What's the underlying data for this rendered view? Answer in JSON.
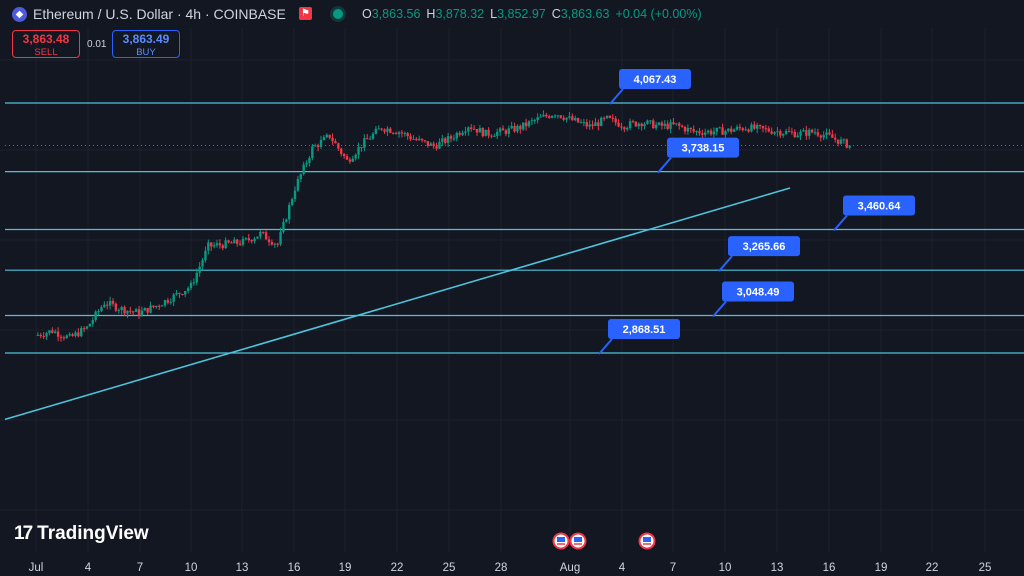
{
  "header": {
    "coin_icon": "ethereum-diamond-icon",
    "symbol": "Ethereum / U.S. Dollar · 4h · COINBASE",
    "flag_icon": "flag-icon",
    "ohlc": [
      {
        "k": "O",
        "v": "3,863.56"
      },
      {
        "k": "H",
        "v": "3,878.32"
      },
      {
        "k": "L",
        "v": "3,852.97"
      },
      {
        "k": "C",
        "v": "3,863.63"
      },
      {
        "k": "",
        "v": "+0.04 (+0.00%)"
      }
    ]
  },
  "trade": {
    "sell_price": "3,863.48",
    "sell_label": "SELL",
    "buy_price": "3,863.49",
    "buy_label": "BUY",
    "spread": "0.01"
  },
  "brand": {
    "name": "TradingView",
    "mark": "17"
  },
  "colors": {
    "up": "#089981",
    "down": "#f23645",
    "line": "#4dc3d9",
    "label_bg": "#2962ff",
    "bg": "#131722",
    "grid": "#1e222d"
  },
  "chart_data": {
    "type": "candlestick",
    "title": "Ethereum / U.S. Dollar · 4h · COINBASE",
    "x_ticks": [
      "Jul",
      "4",
      "7",
      "10",
      "13",
      "16",
      "19",
      "22",
      "25",
      "28",
      "Aug",
      "4",
      "7",
      "10",
      "13",
      "16",
      "19",
      "22",
      "25"
    ],
    "ylim": [
      2500,
      4200
    ],
    "horizontal_levels": [
      {
        "value": 4067.43,
        "label": "4,067.43"
      },
      {
        "value": 3738.15,
        "label": "3,738.15"
      },
      {
        "value": 3460.64,
        "label": "3,460.64"
      },
      {
        "value": 3265.66,
        "label": "3,265.66"
      },
      {
        "value": 3048.49,
        "label": "3,048.49"
      },
      {
        "value": 2868.51,
        "label": "2,868.51"
      }
    ],
    "trendline": {
      "start": {
        "x": "Jul 1",
        "y": 2550
      },
      "end": {
        "x": "Aug 14",
        "y": 3660
      }
    },
    "last_close": 3863.63,
    "event_markers": [
      "us-flag-icon",
      "us-flag-icon",
      "us-flag-icon"
    ],
    "price_path": [
      [
        0,
        2952
      ],
      [
        1,
        2975
      ],
      [
        2,
        2940
      ],
      [
        3,
        2990
      ],
      [
        4,
        3110
      ],
      [
        5,
        3080
      ],
      [
        6,
        3060
      ],
      [
        7,
        3095
      ],
      [
        8,
        3140
      ],
      [
        9,
        3190
      ],
      [
        10,
        3380
      ],
      [
        11,
        3390
      ],
      [
        12,
        3400
      ],
      [
        13,
        3440
      ],
      [
        14,
        3390
      ],
      [
        15,
        3660
      ],
      [
        16,
        3850
      ],
      [
        17,
        3910
      ],
      [
        18,
        3790
      ],
      [
        19,
        3880
      ],
      [
        20,
        3950
      ],
      [
        21,
        3930
      ],
      [
        22,
        3890
      ],
      [
        23,
        3860
      ],
      [
        24,
        3900
      ],
      [
        25,
        3960
      ],
      [
        26,
        3920
      ],
      [
        27,
        3930
      ],
      [
        28,
        3950
      ],
      [
        29,
        3990
      ],
      [
        30,
        4020
      ],
      [
        31,
        3985
      ],
      [
        32,
        3955
      ],
      [
        33,
        3990
      ],
      [
        34,
        3960
      ],
      [
        35,
        3975
      ],
      [
        36,
        3957
      ],
      [
        37,
        3960
      ],
      [
        38,
        3930
      ],
      [
        39,
        3930
      ],
      [
        40,
        3935
      ],
      [
        41,
        3950
      ],
      [
        42,
        3940
      ],
      [
        43,
        3930
      ],
      [
        44,
        3920
      ],
      [
        45,
        3930
      ],
      [
        46,
        3900
      ],
      [
        47,
        3863
      ]
    ]
  }
}
